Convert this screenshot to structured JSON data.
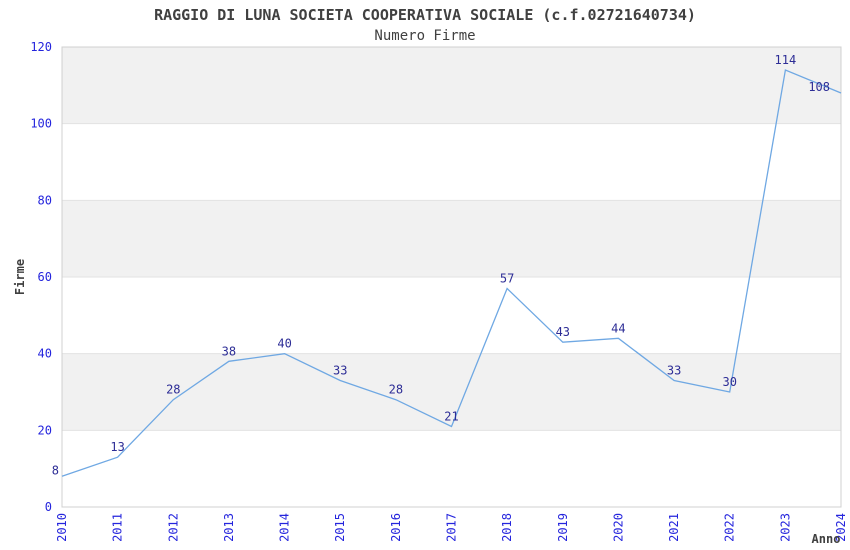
{
  "header": {
    "title": "RAGGIO DI LUNA SOCIETA COOPERATIVA SOCIALE (c.f.02721640734)",
    "subtitle": "Numero Firme"
  },
  "colors": {
    "line": "#6FA8E3",
    "band_fill": "#f1f1f1",
    "gridline": "#e2e2e2",
    "plot_border": "#d0d0d0",
    "tick_label": "#2525dd",
    "value_label": "#2d2d96",
    "title_text": "#404040"
  },
  "chart_data": {
    "type": "line",
    "title": "RAGGIO DI LUNA SOCIETA COOPERATIVA SOCIALE (c.f.02721640734)",
    "subtitle": "Numero Firme",
    "xlabel": "Anno",
    "ylabel": "Firme",
    "categories": [
      "2010",
      "2011",
      "2012",
      "2013",
      "2014",
      "2015",
      "2016",
      "2017",
      "2018",
      "2019",
      "2020",
      "2021",
      "2022",
      "2023",
      "2024"
    ],
    "values": [
      8,
      13,
      28,
      38,
      40,
      33,
      28,
      21,
      57,
      43,
      44,
      33,
      30,
      114,
      108
    ],
    "ylim": [
      0,
      120
    ],
    "yticks": [
      0,
      20,
      40,
      60,
      80,
      100,
      120
    ],
    "grid": "horizontal-bands",
    "band_ranges": [
      [
        20,
        40
      ],
      [
        60,
        80
      ],
      [
        100,
        120
      ]
    ],
    "legend": "none",
    "point_labels_shown": true
  }
}
